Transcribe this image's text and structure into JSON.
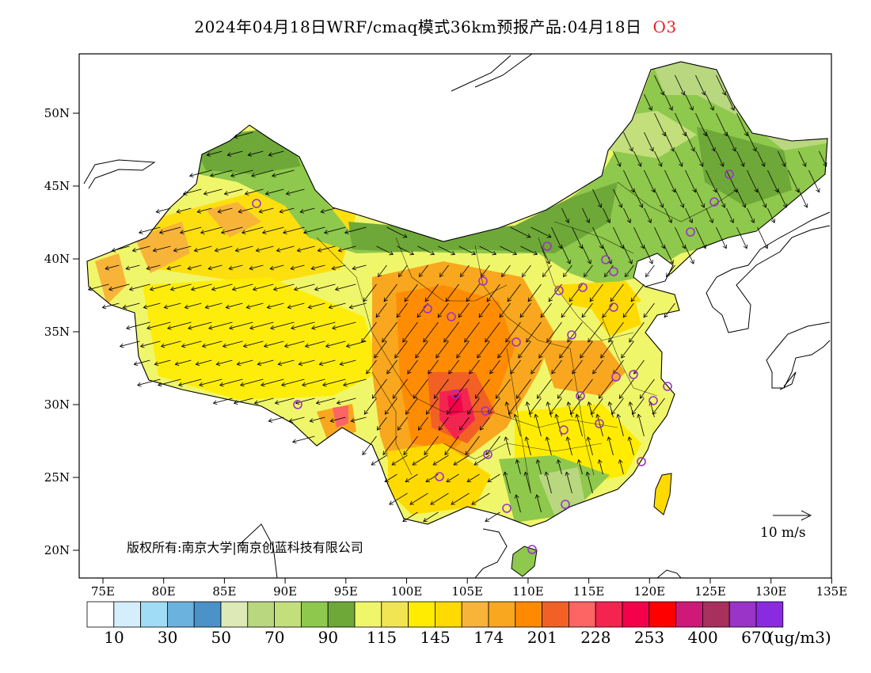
{
  "title": {
    "main": "2024年04月18日WRF/cmaq模式36km预报产品:04月18日",
    "pollutant": "O3"
  },
  "axes": {
    "lat_labels": [
      "50N",
      "45N",
      "40N",
      "35N",
      "30N",
      "25N",
      "20N"
    ],
    "lon_labels": [
      "75E",
      "80E",
      "85E",
      "90E",
      "95E",
      "100E",
      "105E",
      "110E",
      "115E",
      "120E",
      "125E",
      "130E",
      "135E"
    ]
  },
  "copyright": "版权所有:南京大学|南京创蓝科技有限公司",
  "wind_reference": {
    "label": "10 m/s"
  },
  "colorbar": {
    "colors": [
      "#ffffff",
      "#d4effb",
      "#a0dcf5",
      "#6bb2df",
      "#4a92c7",
      "#dde9b6",
      "#b9d77f",
      "#c3df7c",
      "#8ec84c",
      "#6ea838",
      "#f0f66a",
      "#f2e554",
      "#ffec00",
      "#ffda00",
      "#f8b439",
      "#f8a71e",
      "#ff8a00",
      "#f26026",
      "#fd6464",
      "#f42450",
      "#f5004a",
      "#ff0000",
      "#d01878",
      "#a8305c",
      "#9a33c8",
      "#8a2be2"
    ],
    "labels": [
      "10",
      "30",
      "50",
      "70",
      "90",
      "115",
      "145",
      "174",
      "201",
      "228",
      "253",
      "400",
      "670"
    ],
    "unit": "(ug/m3)"
  },
  "colors": {
    "ocean": "#ffffff",
    "high": "#f5004a",
    "orange": "#f8a71e",
    "yellow": "#ffec00",
    "green": "#8ec84c",
    "station": "#9a33c8"
  },
  "icons": {
    "wind": "wind-arrow-icon",
    "station": "station-circle-icon"
  }
}
